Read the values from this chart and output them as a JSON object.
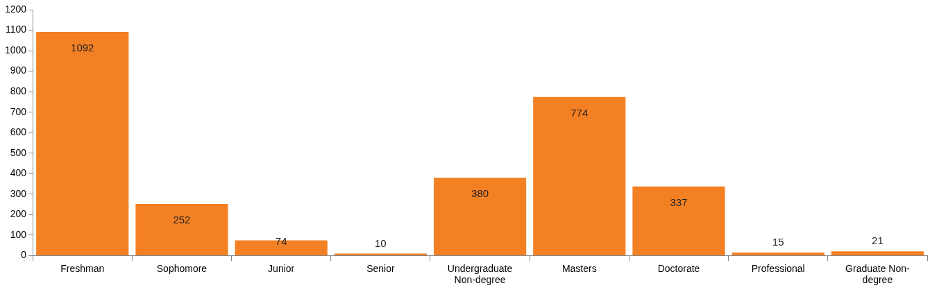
{
  "chart_data": {
    "type": "bar",
    "categories": [
      "Freshman",
      "Sophomore",
      "Junior",
      "Senior",
      "Undergraduate Non-degree",
      "Masters",
      "Doctorate",
      "Professional",
      "Graduate Non-degree"
    ],
    "values": [
      1092,
      252,
      74,
      10,
      380,
      774,
      337,
      15,
      21
    ],
    "color": "#f48024",
    "ylim": [
      0,
      1200
    ],
    "yticks": [
      0,
      100,
      200,
      300,
      400,
      500,
      600,
      700,
      800,
      900,
      1000,
      1100,
      1200
    ],
    "grid": false,
    "legend": false,
    "data_labels": true
  }
}
